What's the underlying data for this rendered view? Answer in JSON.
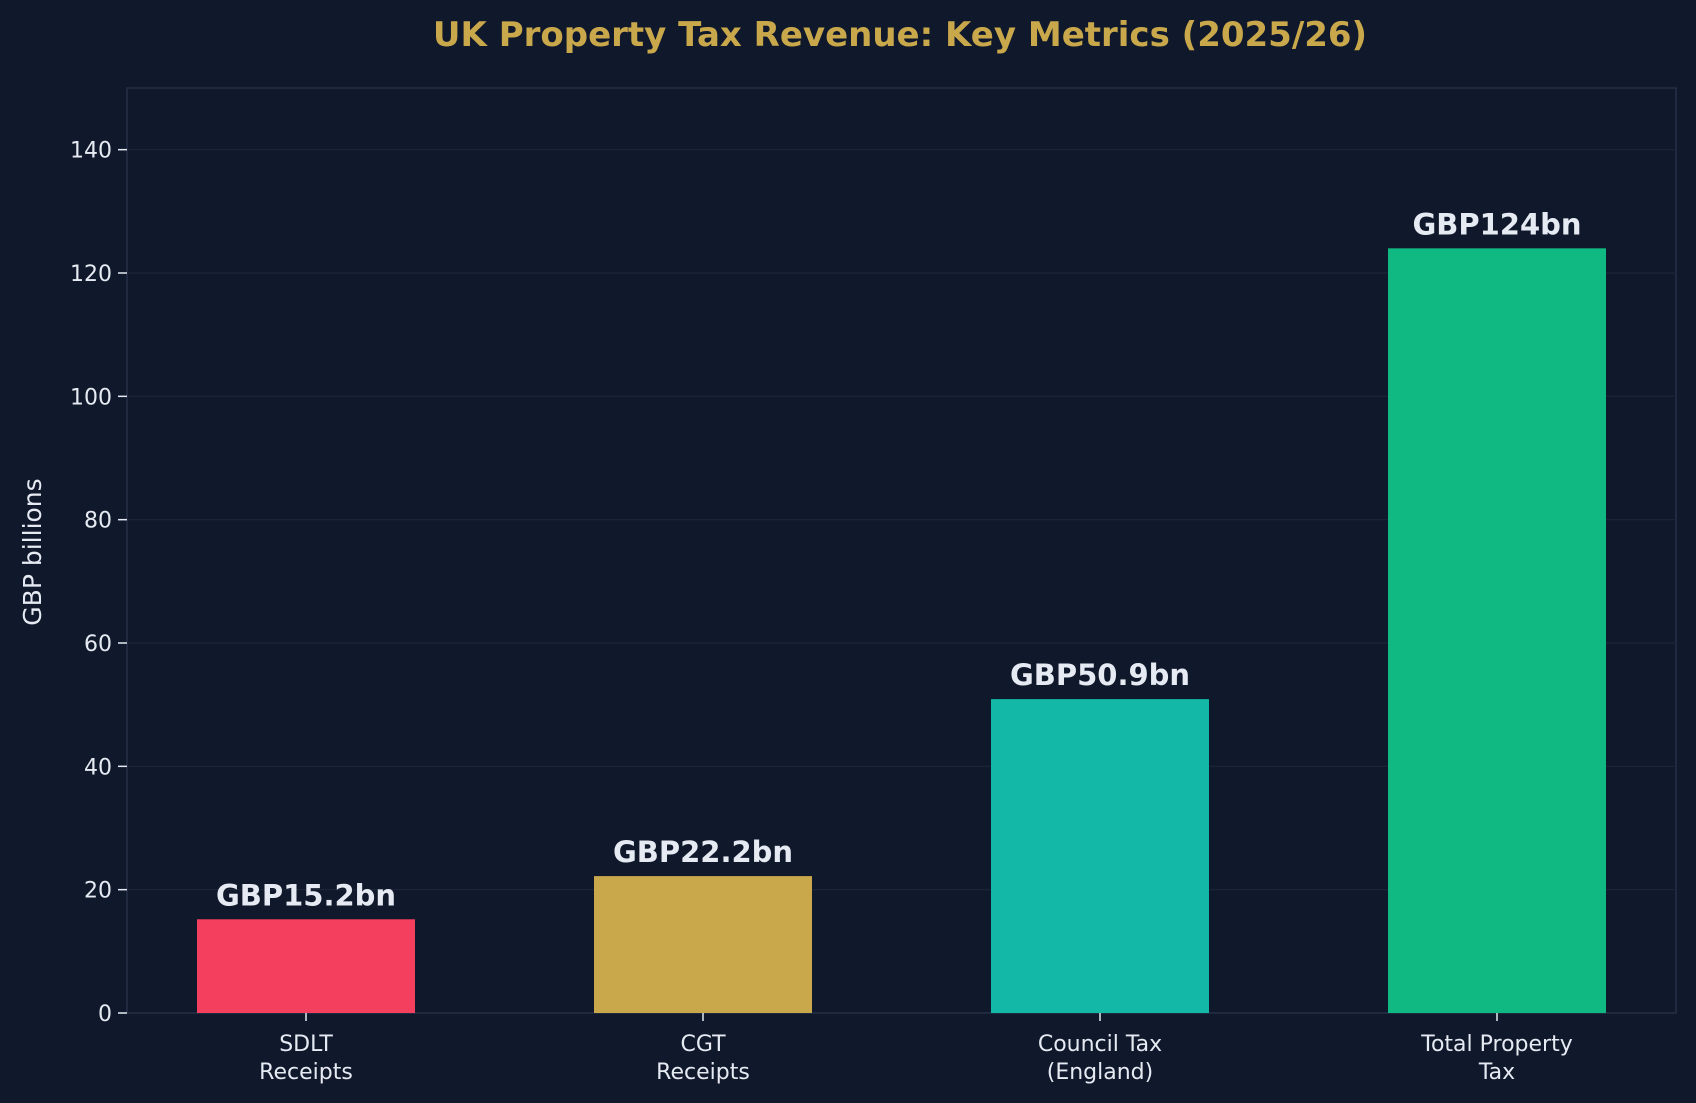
{
  "chart_data": {
    "type": "bar",
    "title": "UK Property Tax Revenue: Key Metrics (2025/26)",
    "xlabel": "",
    "ylabel": "GBP billions",
    "ylim": [
      0,
      150
    ],
    "yticks": [
      0,
      20,
      40,
      60,
      80,
      100,
      120,
      140
    ],
    "categories": [
      [
        "SDLT",
        "Receipts"
      ],
      [
        "CGT",
        "Receipts"
      ],
      [
        "Council Tax",
        "(England)"
      ],
      [
        "Total Property",
        "Tax"
      ]
    ],
    "values": [
      15.2,
      22.2,
      50.9,
      124
    ],
    "data_labels": [
      "GBP15.2bn",
      "GBP22.2bn",
      "GBP50.9bn",
      "GBP124bn"
    ],
    "bar_colors": [
      "#f43f5e",
      "#c9a84c",
      "#14b8a6",
      "#10b981"
    ],
    "grid": true,
    "legend": "none"
  },
  "colors": {
    "background": "#10182b",
    "plot_background": "#10182b",
    "title": "#c9a84c",
    "text": "#e6eaf2",
    "grid": "#1c2638",
    "spine": "#243047"
  }
}
